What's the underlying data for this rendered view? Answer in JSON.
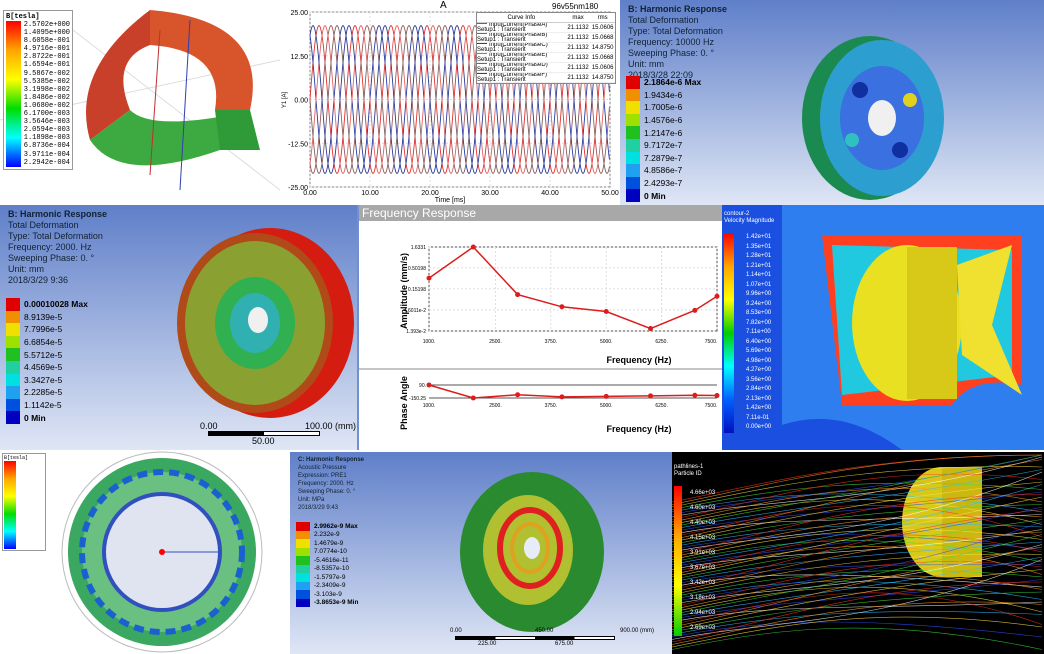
{
  "panel1": {
    "legend_title": "B[tesla]",
    "values": [
      "2.5702e+000",
      "1.4095e+000",
      "8.6058e-001",
      "4.9716e-001",
      "2.8722e-001",
      "1.6594e-001",
      "9.5867e-002",
      "5.5385e-002",
      "3.1998e-002",
      "1.8486e-002",
      "1.0680e-002",
      "6.1700e-003",
      "3.5646e-003",
      "2.0594e-003",
      "1.1898e-003",
      "6.8736e-004",
      "3.9711e-004",
      "2.2942e-004"
    ]
  },
  "panel2": {
    "title": "A",
    "subtitle": "96v55nm180",
    "legend_headers": [
      "Curve Info",
      "max",
      "rms"
    ],
    "chart_data": {
      "type": "line",
      "title": "A",
      "xlabel": "Time [ms]",
      "ylabel": "Y1 [A]",
      "xlim": [
        0,
        50
      ],
      "ylim": [
        -25,
        25
      ],
      "xticks": [
        "0.00",
        "10.00",
        "20.00",
        "30.00",
        "40.00",
        "50.00"
      ],
      "yticks": [
        "25.00",
        "12.50",
        "0.00",
        "-12.50",
        "-25.00"
      ],
      "grid": true,
      "legend_placement": "top-right",
      "amplitude": 21.1132,
      "period_ms": 6,
      "series": [
        {
          "name": "InputCurrent(PhaseA)",
          "setup": "Setup1 : Transient",
          "max": "21.1132",
          "rms": "15.0606",
          "color": "#e03030",
          "phase_deg": 0
        },
        {
          "name": "InputCurrent(PhaseB)",
          "setup": "Setup1 : Transient",
          "max": "21.1132",
          "rms": "15.0668",
          "color": "#9a5a5a",
          "phase_deg": 120
        },
        {
          "name": "InputCurrent(PhaseC)",
          "setup": "Setup1 : Transient",
          "max": "21.1132",
          "rms": "14.8750",
          "color": "#2a3aa0",
          "phase_deg": 240
        },
        {
          "name": "InputCurrent(PhaseE)",
          "setup": "Setup1 : Transient",
          "max": "21.1132",
          "rms": "15.0668",
          "color": "#e06060",
          "phase_deg": 60
        },
        {
          "name": "InputCurrent(PhaseD)",
          "setup": "Setup1 : Transient",
          "max": "21.1132",
          "rms": "15.0606",
          "color": "#806060",
          "phase_deg": 180
        },
        {
          "name": "InputCurrent(PhaseF)",
          "setup": "Setup1 : Transient",
          "max": "21.1132",
          "rms": "14.8750",
          "color": "#303a90",
          "phase_deg": 300
        }
      ]
    }
  },
  "panel3": {
    "header": [
      "B: Harmonic Response",
      "Total Deformation",
      "Type: Total Deformation",
      "Frequency: 10000 Hz",
      "Sweeping Phase: 0. °",
      "Unit: mm",
      "2018/3/28 22:09"
    ],
    "values": [
      "2.1864e-6 Max",
      "1.9434e-6",
      "1.7005e-6",
      "1.4576e-6",
      "1.2147e-6",
      "9.7172e-7",
      "7.2879e-7",
      "4.8586e-7",
      "2.4293e-7",
      "0 Min"
    ]
  },
  "panel4": {
    "header": [
      "B: Harmonic Response",
      "Total Deformation",
      "Type: Total Deformation",
      "Frequency: 2000. Hz",
      "Sweeping Phase: 0. °",
      "Unit: mm",
      "2018/3/29 9:36"
    ],
    "values": [
      "0.00010028 Max",
      "8.9139e-5",
      "7.7996e-5",
      "6.6854e-5",
      "5.5712e-5",
      "4.4569e-5",
      "3.3427e-5",
      "2.2285e-5",
      "1.1142e-5",
      "0 Min"
    ],
    "scale": {
      "left": "0.00",
      "right": "100.00 (mm)",
      "mid": "50.00"
    }
  },
  "panel5": {
    "title": "Frequency Response",
    "chart_data": [
      {
        "type": "line",
        "xlabel": "Frequency (Hz)",
        "ylabel": "Amplitude (mm/s)",
        "yscale": "log",
        "grid": true,
        "xticks": [
          "1000.",
          "2500.",
          "3750.",
          "5000.",
          "6250.",
          "7500."
        ],
        "yticks": [
          "1.6331",
          "0.50198",
          "0.15198",
          "4.6011e-2",
          "1.393e-2"
        ],
        "x": [
          1000,
          2000,
          3000,
          4000,
          5000,
          6000,
          7000,
          7500
        ],
        "y": [
          0.28,
          1.6331,
          0.11,
          0.055,
          0.042,
          0.016,
          0.045,
          0.1
        ],
        "color": "#dd1c1c"
      },
      {
        "type": "line",
        "xlabel": "Frequency (Hz)",
        "ylabel": "Phase Angle",
        "grid": false,
        "xticks": [
          "1000.",
          "2500.",
          "3750.",
          "5000.",
          "6250.",
          "7500."
        ],
        "yticks": [
          "90.",
          "-150.25"
        ],
        "ylim": [
          -150.25,
          90
        ],
        "x": [
          1000,
          2000,
          3000,
          4000,
          5000,
          6000,
          7000,
          7500
        ],
        "y": [
          90,
          -150,
          -90,
          -130,
          -120,
          -110,
          -100,
          -105
        ],
        "color": "#dd1c1c"
      }
    ]
  },
  "panel6": {
    "legend_title": "contour-2",
    "legend_subtitle": "Velocity Magnitude",
    "values": [
      "1.42e+01",
      "1.35e+01",
      "1.28e+01",
      "1.21e+01",
      "1.14e+01",
      "1.07e+01",
      "9.96e+00",
      "9.24e+00",
      "8.53e+00",
      "7.82e+00",
      "7.11e+00",
      "6.40e+00",
      "5.69e+00",
      "4.98e+00",
      "4.27e+00",
      "3.56e+00",
      "2.84e+00",
      "2.13e+00",
      "1.42e+00",
      "7.11e-01",
      "0.00e+00"
    ]
  },
  "panel7": {
    "legend_title": "B[tesla]"
  },
  "panel8": {
    "header": [
      "C: Harmonic Response",
      "Acoustic Pressure",
      "Expression: PRE1",
      "Frequency: 2000. Hz",
      "Sweeping Phase: 0. °",
      "Unit: MPa",
      "2018/3/29 9:43"
    ],
    "values": [
      "2.9962e-9 Max",
      "2.232e-9",
      "1.4679e-9",
      "7.0774e-10",
      "-5.4616e-11",
      "-8.5357e-10",
      "-1.5797e-9",
      "-2.3409e-9",
      "-3.103e-9",
      "-3.8653e-9 Min"
    ],
    "scale": {
      "left": "0.00",
      "right": "900.00 (mm)",
      "mid1": "225.00",
      "mid2": "675.00",
      "center": "450.00"
    }
  },
  "panel9": {
    "legend_title": "pathlines-1",
    "legend_subtitle": "Particle ID",
    "values": [
      "4.66e+03",
      "4.60e+03",
      "4.40e+03",
      "4.15e+03",
      "3.91e+03",
      "3.67e+03",
      "3.42e+03",
      "3.18e+03",
      "2.94e+03",
      "2.69e+03"
    ]
  }
}
